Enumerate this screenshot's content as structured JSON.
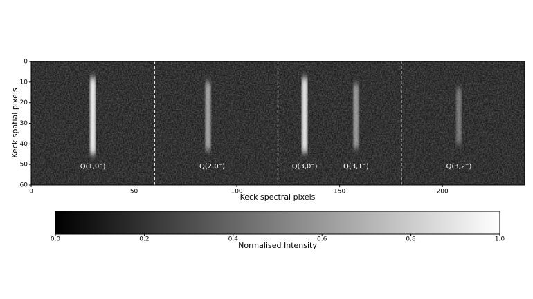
{
  "chart_data": {
    "type": "image",
    "xlabel": "Keck spectral pixels",
    "ylabel": "Keck spatial pixels",
    "xlim": [
      0,
      240
    ],
    "ylim": [
      60,
      0
    ],
    "xticks": [
      0,
      50,
      100,
      150,
      200
    ],
    "yticks": [
      0,
      10,
      20,
      30,
      40,
      50,
      60
    ],
    "vlines": [
      60,
      120,
      180
    ],
    "features": [
      {
        "x": 30,
        "y": [
          8,
          45
        ],
        "intensity": 0.9
      },
      {
        "x": 86,
        "y": [
          10,
          43
        ],
        "intensity": 0.55
      },
      {
        "x": 133,
        "y": [
          8,
          44
        ],
        "intensity": 0.85
      },
      {
        "x": 158,
        "y": [
          11,
          42
        ],
        "intensity": 0.5
      },
      {
        "x": 208,
        "y": [
          13,
          40
        ],
        "intensity": 0.35
      }
    ],
    "annotations": [
      {
        "text": "Q(1,0⁻)",
        "x": 30,
        "y": 51
      },
      {
        "text": "Q(2,0⁻)",
        "x": 88,
        "y": 51
      },
      {
        "text": "Q(3,0⁻)",
        "x": 133,
        "y": 51
      },
      {
        "text": "Q(3,1⁻)",
        "x": 158,
        "y": 51
      },
      {
        "text": "Q(3,2⁻)",
        "x": 208,
        "y": 51
      }
    ],
    "colorbar": {
      "label": "Normalised Intensity",
      "lim": [
        0,
        1
      ],
      "ticks": [
        {
          "value": 0,
          "label": "0.0"
        },
        {
          "value": 0.2,
          "label": "0.2"
        },
        {
          "value": 0.4,
          "label": "0.4"
        },
        {
          "value": 0.6,
          "label": "0.6"
        },
        {
          "value": 0.8,
          "label": "0.8"
        },
        {
          "value": 1,
          "label": "1.0"
        }
      ]
    }
  }
}
